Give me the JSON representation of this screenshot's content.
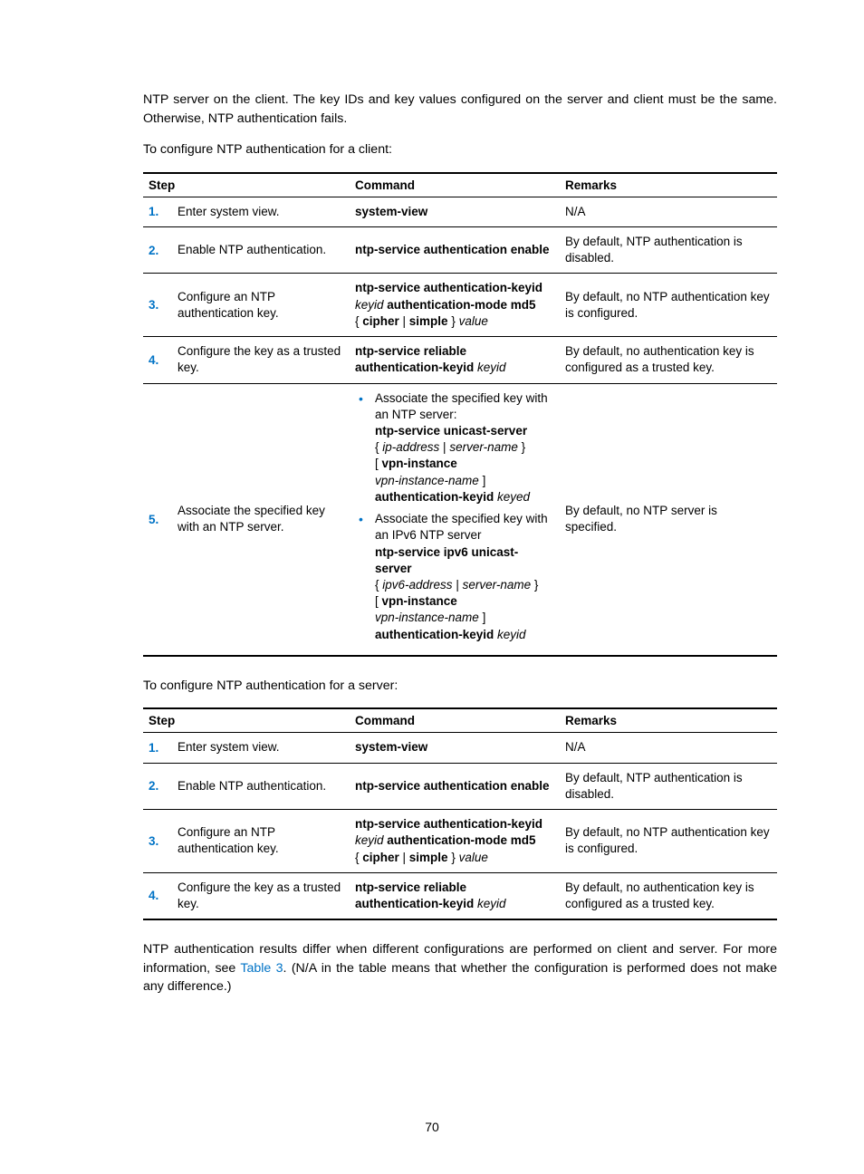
{
  "para1": "NTP server on the client. The key IDs and key values configured on the server and client must be the same. Otherwise, NTP authentication fails.",
  "para2": "To configure NTP authentication for a client:",
  "para3": "To configure NTP authentication for a server:",
  "para4a": "NTP authentication results differ when different configurations are performed on client and server. For more information, see ",
  "para4link": "Table 3",
  "para4b": ". (N/A in the table means that whether the configuration is performed does not make any difference.)",
  "headers": {
    "step": "Step",
    "command": "Command",
    "remarks": "Remarks"
  },
  "row1": {
    "n": "1.",
    "desc": "Enter system view.",
    "cmd": "system-view",
    "rem": "N/A"
  },
  "row2": {
    "n": "2.",
    "desc": "Enable NTP authentication.",
    "cmd": "ntp-service authentication enable",
    "rem": "By default, NTP authentication is disabled."
  },
  "row3": {
    "n": "3.",
    "desc": "Configure an NTP authentication key.",
    "cmd_l1": "ntp-service authentication-keyid",
    "cmd_l2a": "keyid",
    "cmd_l2b": " authentication-mode md5",
    "cmd_l3a": "{ ",
    "cmd_l3b": "cipher",
    "cmd_l3c": " | ",
    "cmd_l3d": "simple",
    "cmd_l3e": " } ",
    "cmd_l3f": "value",
    "rem": "By default, no NTP authentication key is configured."
  },
  "row4": {
    "n": "4.",
    "desc": "Configure the key as a trusted key.",
    "cmd_l1": "ntp-service reliable",
    "cmd_l2a": "authentication-keyid",
    "cmd_l2b": " keyid",
    "rem": "By default, no authentication key is configured as a trusted key."
  },
  "row5": {
    "n": "5.",
    "desc": "Associate the specified key with an NTP server.",
    "b1_t": "Associate the specified key with an NTP server:",
    "b1_l1": "ntp-service unicast-server",
    "b1_l2a": "{ ",
    "b1_l2b": "ip-address",
    "b1_l2c": " | ",
    "b1_l2d": "server-name",
    "b1_l2e": " }",
    "b1_l3a": "[ ",
    "b1_l3b": "vpn-instance",
    "b1_l4a": "vpn-instance-name",
    "b1_l4b": " ]",
    "b1_l5a": "authentication-keyid",
    "b1_l5b": " keyed",
    "b2_t": "Associate the specified key with an IPv6 NTP server",
    "b2_l1": "ntp-service ipv6 unicast-server",
    "b2_l2a": "{ ",
    "b2_l2b": "ipv6-address",
    "b2_l2c": " | ",
    "b2_l2d": "server-name",
    "b2_l2e": " }",
    "b2_l3a": "[ ",
    "b2_l3b": "vpn-instance",
    "b2_l4a": "vpn-instance-name",
    "b2_l4b": " ]",
    "b2_l5a": "authentication-keyid",
    "b2_l5b": " keyid",
    "rem": "By default, no NTP server is specified."
  },
  "pagenum": "70"
}
